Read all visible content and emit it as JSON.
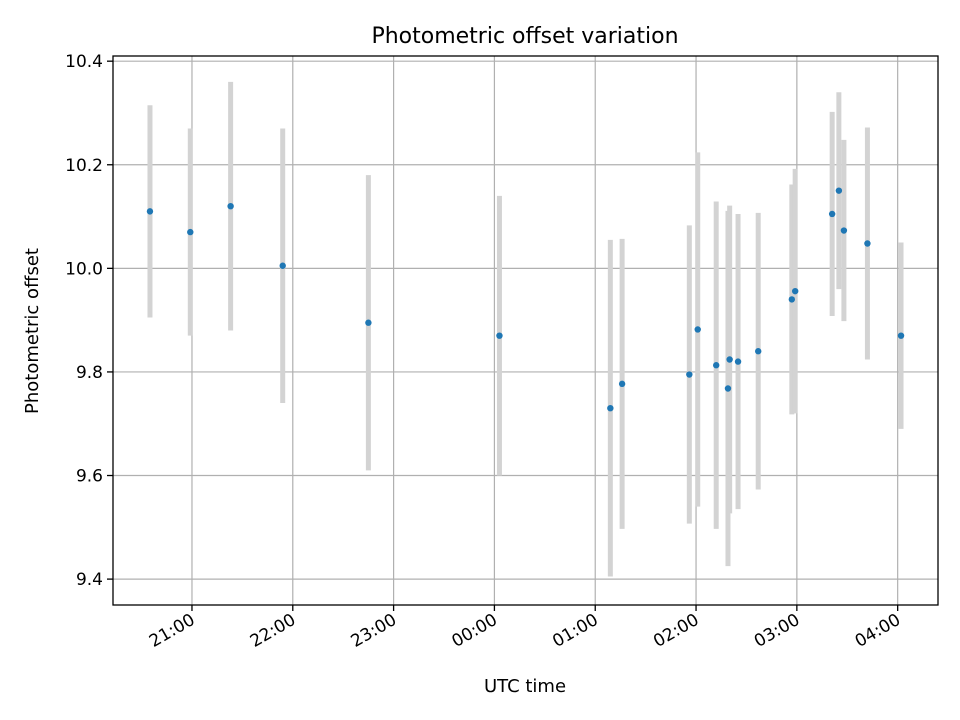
{
  "chart_data": {
    "type": "scatter",
    "title": "Photometric offset variation",
    "xlabel": "UTC time",
    "ylabel": "Photometric offset",
    "grid": true,
    "x_ticks": [
      "21:00",
      "22:00",
      "23:00",
      "00:00",
      "01:00",
      "02:00",
      "03:00",
      "04:00"
    ],
    "y_ticks": [
      "9.4",
      "9.6",
      "9.8",
      "10.0",
      "10.2",
      "10.4"
    ],
    "ylim": [
      9.35,
      10.41
    ],
    "xlim": [
      "20:13",
      "04:24"
    ],
    "colors": {
      "point": "#1f77b4",
      "errorbar": "#d3d3d3",
      "grid": "#b0b0b0"
    },
    "points": [
      {
        "x": "20:35",
        "y": 10.11,
        "ylow": 9.905,
        "yhigh": 10.315
      },
      {
        "x": "20:59",
        "y": 10.07,
        "ylow": 9.87,
        "yhigh": 10.27
      },
      {
        "x": "21:23",
        "y": 10.12,
        "ylow": 9.88,
        "yhigh": 10.36
      },
      {
        "x": "21:54",
        "y": 10.005,
        "ylow": 9.74,
        "yhigh": 10.27
      },
      {
        "x": "22:45",
        "y": 9.895,
        "ylow": 9.61,
        "yhigh": 10.18
      },
      {
        "x": "00:03",
        "y": 9.87,
        "ylow": 9.6,
        "yhigh": 10.14
      },
      {
        "x": "01:09",
        "y": 9.73,
        "ylow": 9.405,
        "yhigh": 10.055
      },
      {
        "x": "01:16",
        "y": 9.777,
        "ylow": 9.497,
        "yhigh": 10.057
      },
      {
        "x": "01:56",
        "y": 9.795,
        "ylow": 9.507,
        "yhigh": 10.083
      },
      {
        "x": "02:01",
        "y": 9.882,
        "ylow": 9.54,
        "yhigh": 10.224
      },
      {
        "x": "02:12",
        "y": 9.813,
        "ylow": 9.497,
        "yhigh": 10.129
      },
      {
        "x": "02:19",
        "y": 9.768,
        "ylow": 9.425,
        "yhigh": 10.111
      },
      {
        "x": "02:20",
        "y": 9.824,
        "ylow": 9.527,
        "yhigh": 10.121
      },
      {
        "x": "02:25",
        "y": 9.82,
        "ylow": 9.535,
        "yhigh": 10.105
      },
      {
        "x": "02:37",
        "y": 9.84,
        "ylow": 9.573,
        "yhigh": 10.107
      },
      {
        "x": "02:57",
        "y": 9.94,
        "ylow": 9.718,
        "yhigh": 10.162
      },
      {
        "x": "02:59",
        "y": 9.956,
        "ylow": 9.72,
        "yhigh": 10.192
      },
      {
        "x": "03:21",
        "y": 10.105,
        "ylow": 9.908,
        "yhigh": 10.302
      },
      {
        "x": "03:25",
        "y": 10.15,
        "ylow": 9.96,
        "yhigh": 10.34
      },
      {
        "x": "03:28",
        "y": 10.073,
        "ylow": 9.898,
        "yhigh": 10.248
      },
      {
        "x": "03:42",
        "y": 10.048,
        "ylow": 9.824,
        "yhigh": 10.272
      },
      {
        "x": "04:02",
        "y": 9.87,
        "ylow": 9.69,
        "yhigh": 10.05
      }
    ]
  }
}
